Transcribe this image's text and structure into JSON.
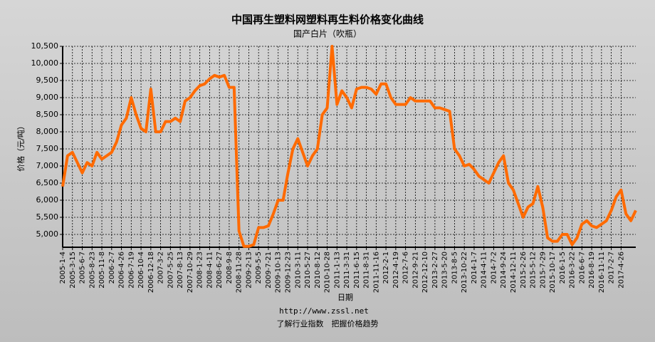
{
  "chart_data": {
    "type": "line",
    "title": "中国再生塑料网塑料再生料价格变化曲线",
    "subtitle": "国产白片（吹瓶）",
    "x_label": "日期",
    "y_label": "价格（元/吨）",
    "annotations": [
      "http://www.zssl.net",
      "了解行业指数　把握价格趋势"
    ],
    "grid": true,
    "categories": [
      "2005-1-4",
      null,
      "2005-3-15",
      null,
      "2005-6-7",
      null,
      "2005-8-23",
      null,
      "2005-11-8",
      null,
      "2006-2-7",
      null,
      "2006-4-26",
      null,
      "2006-7-19",
      null,
      "2006-10-4",
      null,
      "2006-12-18",
      null,
      "2007-3-2",
      null,
      "2007-5-25",
      null,
      "2007-8-13",
      null,
      "2007-10-29",
      null,
      "2008-1-23",
      null,
      "2008-4-11",
      null,
      "2008-6-27",
      null,
      "2008-9-8",
      null,
      "2008-11-28",
      null,
      "2009-2-13",
      null,
      "2009-5-5",
      null,
      "2009-7-21",
      null,
      "2009-10-13",
      null,
      "2009-12-23",
      null,
      "2010-3-11",
      null,
      "2010-5-27",
      null,
      "2010-8-12",
      null,
      "2010-10-28",
      null,
      "2011-1-13",
      null,
      "2011-3-31",
      null,
      "2011-6-15",
      null,
      "2011-8-31",
      null,
      "2011-11-16",
      null,
      "2012-2-1",
      null,
      "2012-4-19",
      null,
      "2012-7-6",
      null,
      "2012-9-21",
      null,
      "2012-12-10",
      null,
      "2013-2-27",
      null,
      "2013-5-20",
      null,
      "2013-8-5",
      null,
      "2013-10-22",
      null,
      "2014-1-7",
      null,
      "2014-4-11",
      null,
      "2014-7-2",
      null,
      "2014-9-24",
      null,
      "2014-12-11",
      null,
      "2015-2-26",
      null,
      "2015-5-12",
      null,
      "2015-7-29",
      null,
      "2015-10-17",
      null,
      "2016-1-5",
      null,
      "2016-3-22",
      null,
      "2016-6-7",
      null,
      "2016-8-19",
      null,
      "2016-11-11",
      null,
      "2017-2-7",
      null,
      "2017-4-26",
      null,
      null,
      null
    ],
    "series": [
      {
        "color": "#ff6a00",
        "values": [
          6400,
          7300,
          7400,
          7100,
          6800,
          7100,
          7000,
          7400,
          7200,
          7300,
          7400,
          7700,
          8200,
          8400,
          9000,
          8500,
          8100,
          8000,
          9250,
          8000,
          8000,
          8300,
          8300,
          8400,
          8300,
          8900,
          9000,
          9200,
          9350,
          9400,
          9550,
          9650,
          9600,
          9650,
          9300,
          9300,
          5100,
          4650,
          4650,
          4700,
          5200,
          5200,
          5250,
          5600,
          6000,
          6000,
          6800,
          7500,
          7800,
          7400,
          7000,
          7300,
          7500,
          8500,
          8700,
          10500,
          8800,
          9200,
          9000,
          8700,
          9250,
          9300,
          9300,
          9250,
          9100,
          9400,
          9400,
          9000,
          8800,
          8800,
          8800,
          9000,
          8900,
          8900,
          8900,
          8900,
          8700,
          8700,
          8650,
          8600,
          7500,
          7300,
          7000,
          7050,
          6900,
          6700,
          6600,
          6500,
          6800,
          7100,
          7300,
          6500,
          6300,
          5900,
          5500,
          5800,
          5900,
          6400,
          5800,
          4900,
          4800,
          4800,
          5000,
          5000,
          4700,
          4900,
          5300,
          5400,
          5250,
          5200,
          5300,
          5400,
          5700,
          6100,
          6300,
          5600,
          5400,
          5700
        ]
      }
    ],
    "ylim": [
      4625,
      10500
    ],
    "yticks": [
      {
        "value": 5000,
        "label": "5,000"
      },
      {
        "value": 5500,
        "label": "5,500"
      },
      {
        "value": 6000,
        "label": "6,000"
      },
      {
        "value": 6500,
        "label": "6,500"
      },
      {
        "value": 7000,
        "label": "7,000"
      },
      {
        "value": 7500,
        "label": "7,500"
      },
      {
        "value": 8000,
        "label": "8,000"
      },
      {
        "value": 8500,
        "label": "8,500"
      },
      {
        "value": 9000,
        "label": "9,000"
      },
      {
        "value": 9500,
        "label": "9,500"
      },
      {
        "value": 10000,
        "label": "10,000"
      },
      {
        "value": 10500,
        "label": "10,500"
      }
    ]
  }
}
